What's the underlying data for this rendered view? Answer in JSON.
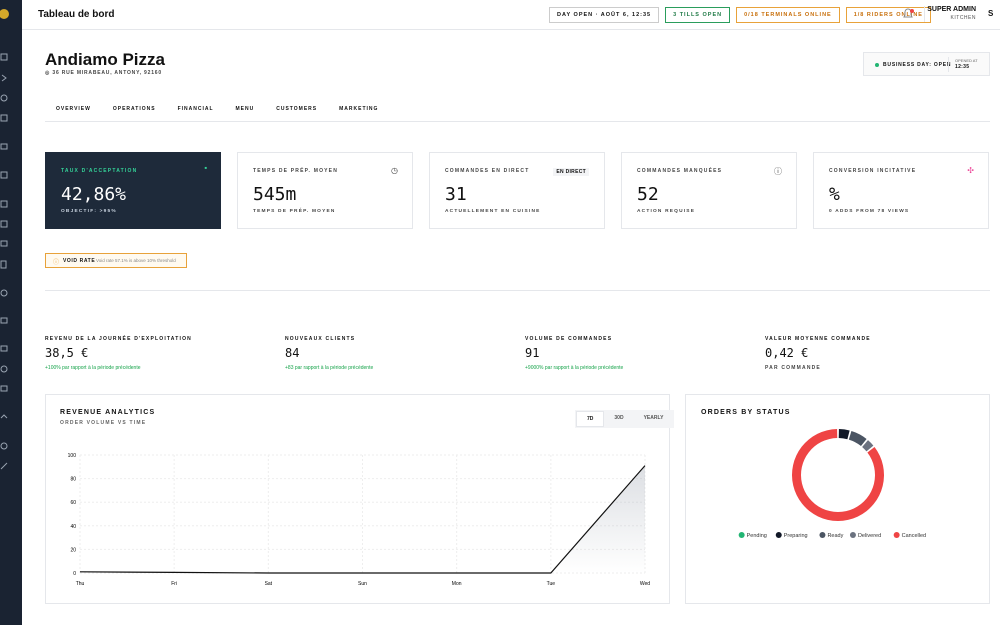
{
  "header": {
    "title": "Tableau de bord",
    "badges": [
      "DAY OPEN · AOÛT 6, 12:35",
      "3 TILLS OPEN",
      "0/18 TERMINALS ONLINE",
      "1/8 RIDERS ONLINE"
    ],
    "user": {
      "name": "SUPER ADMIN",
      "role": "KITCHEN",
      "initial": "S"
    }
  },
  "restaurant": {
    "name": "Andiamo Pizza",
    "address": "36 RUE MIRABEAU, ANTONY, 92160",
    "status": "BUSINESS DAY: OPEN",
    "opened_label": "OPENED AT",
    "opened_time": "12:35"
  },
  "tabs": [
    "OVERVIEW",
    "OPERATIONS",
    "FINANCIAL",
    "MENU",
    "CUSTOMERS",
    "MARKETING"
  ],
  "kpis": [
    {
      "label": "TAUX D'ACCEPTATION",
      "value": "42,86%",
      "sub": "OBJECTIF: >95%"
    },
    {
      "label": "TEMPS DE PRÉP. MOYEN",
      "value": "545m",
      "sub": "TEMPS DE PRÉP. MOYEN"
    },
    {
      "label": "COMMANDES EN DIRECT",
      "value": "31",
      "sub": "ACTUELLEMENT EN CUISINE",
      "badge": "EN DIRECT"
    },
    {
      "label": "COMMANDES MANQUÉES",
      "value": "52",
      "sub": "ACTION REQUISE"
    },
    {
      "label": "CONVERSION INCITATIVE",
      "value": "%",
      "sub": "0 ADDS FROM 78 VIEWS"
    }
  ],
  "alert": {
    "label": "VOID RATE",
    "text": "Void rate 57.1% is above 10% threshold"
  },
  "stats": [
    {
      "label": "REVENU DE LA JOURNÉE D'EXPLOITATION",
      "value": "38,5 €",
      "change": "+100% par rapport à la période précédente"
    },
    {
      "label": "NOUVEAUX CLIENTS",
      "value": "84",
      "change": "+83 par rapport à la période précédente"
    },
    {
      "label": "VOLUME DE COMMANDES",
      "value": "91",
      "change": "+9000% par rapport à la période précédente"
    },
    {
      "label": "VALEUR MOYENNE COMMANDE",
      "value": "0,42 €",
      "note": "PAR COMMANDE"
    }
  ],
  "chart_data": [
    {
      "type": "line",
      "title": "REVENUE ANALYTICS",
      "subtitle": "ORDER VOLUME VS TIME",
      "ranges": [
        "7D",
        "30D",
        "YEARLY"
      ],
      "categories": [
        "Thu",
        "Fri",
        "Sat",
        "Sun",
        "Mon",
        "Tue",
        "Wed"
      ],
      "values": [
        1,
        0.5,
        0,
        0,
        0,
        0,
        91
      ],
      "color": "#111111",
      "ylim": [
        0,
        100
      ],
      "yticks": [
        0,
        20,
        40,
        60,
        80,
        100
      ],
      "grid": true
    },
    {
      "type": "pie",
      "title": "ORDERS BY STATUS",
      "categories": [
        "Pending",
        "Preparing",
        "Ready",
        "Delivered",
        "Cancelled"
      ],
      "values": [
        0,
        4,
        6,
        3,
        78
      ],
      "colors": [
        "#22b573",
        "#111827",
        "#4b5563",
        "#6b7280",
        "#ef4444"
      ]
    }
  ]
}
